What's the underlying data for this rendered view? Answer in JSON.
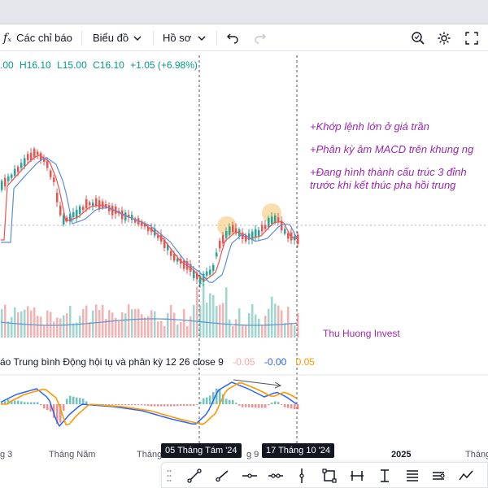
{
  "toolbar": {
    "indicators_label": "Các chỉ báo",
    "chart_type_label": "Biểu đồ",
    "profile_label": "Hồ sơ"
  },
  "ohlc": {
    "open": ".00",
    "high": "H16.10",
    "low": "L15.00",
    "close": "C16.10",
    "change": "+1.05 (+6.98%)"
  },
  "annotations": [
    "+Khớp lệnh lớn ở giá trần",
    "+Phân kỳ âm MACD trên khung ng",
    "+Đang hình thành cấu trúc 3 đỉnh",
    "trước khi kết thúc pha hồi trung"
  ],
  "watermark": "Thu Huong Invest",
  "macd_legend": {
    "name": "áo Trung bình Động hội tụ và phân kỳ 12 26 close 9",
    "histogram": "-0.05",
    "macd": "-0.00",
    "signal": "0.05"
  },
  "time_axis": {
    "labels": [
      "g 3",
      "Tháng Năm",
      "Tháng",
      "g 9",
      "2025",
      "Tháng"
    ],
    "badges": [
      "05 Tháng Tám '24",
      "17 Tháng 10 '24"
    ]
  },
  "colors": {
    "up": "#26a69a",
    "down": "#ef5350",
    "annotation": "#9c27b0",
    "ma_fast": "#ef5350",
    "ma_slow": "#5b8fd9",
    "macd": "#2962ff",
    "signal": "#ff9800",
    "highlight": "#f5c26b"
  },
  "icons": {
    "toolbar": [
      "fx-icon",
      "chevron-down-icon",
      "undo-icon",
      "redo-icon",
      "zoom-icon",
      "gear-icon",
      "fullscreen-icon"
    ],
    "drawing": [
      "trendline-icon",
      "ray-icon",
      "horizontal-line-icon",
      "vertical-line-icon",
      "rectangle-icon",
      "parallel-channel-icon",
      "cursor-icon",
      "fib-icon",
      "brush-icon",
      "pattern-icon"
    ]
  }
}
